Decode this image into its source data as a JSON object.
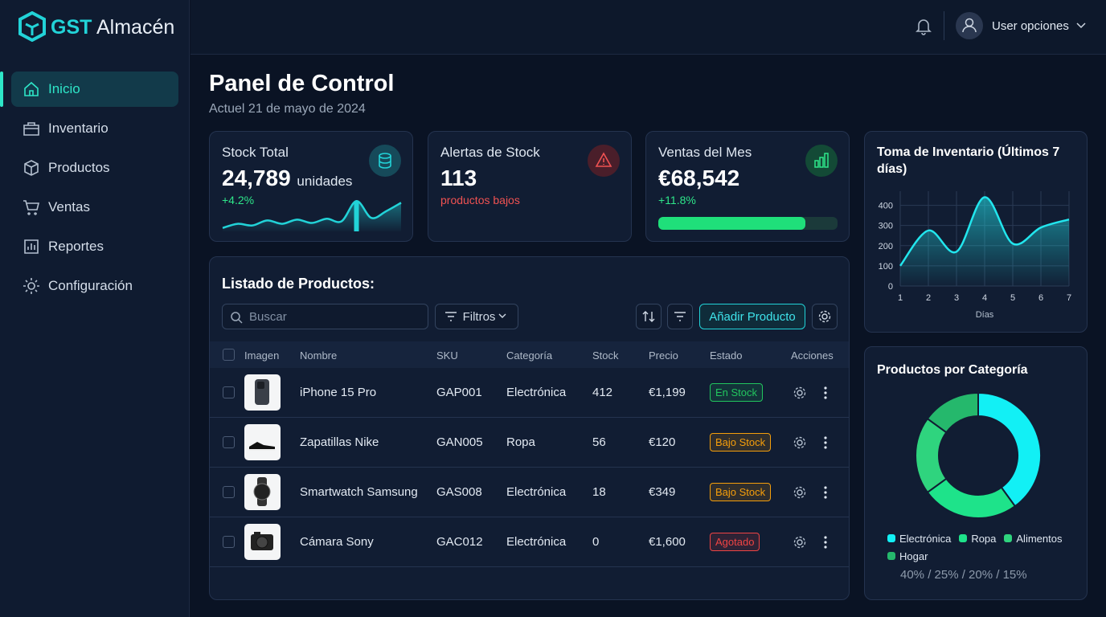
{
  "app": {
    "brand": "GST",
    "brand_suffix": "Almacén",
    "user": "User opciones"
  },
  "nav": {
    "active": 0,
    "items": [
      "Inicio",
      "Inventario",
      "Productos",
      "Ventas",
      "Reportes",
      "Configuración"
    ]
  },
  "page": {
    "title": "Panel de Control",
    "subtitle": "Actuel 21 de mayo de 2024"
  },
  "kpis": [
    {
      "label": "Stock Total",
      "value": "24,789",
      "unit": "unidades",
      "change": "+4.2%"
    },
    {
      "label": "Alertas de Stock",
      "value": "113",
      "note": "productos bajos"
    },
    {
      "label": "Ventas del Mes",
      "value": "€68,542",
      "change": "+11.8%",
      "progress": 82
    }
  ],
  "table": {
    "title": "Listado de Productos:",
    "search_placeholder": "Buscar",
    "filter": "Filtros",
    "add_button": "Añadir Producto",
    "columns": [
      "Imagen",
      "Nombre",
      "SKU",
      "Categoría",
      "Stock",
      "Precio",
      "Estado",
      "Acciones"
    ],
    "rows": [
      {
        "name": "iPhone 15 Pro",
        "sku": "GAP001",
        "category": "Electrónica",
        "stock": "412",
        "price": "€1,199",
        "status": "En Stock",
        "tone": "#22c55e"
      },
      {
        "name": "Zapatillas Nike",
        "sku": "GAN005",
        "category": "Ropa",
        "stock": "56",
        "price": "€120",
        "status": "Bajo Stock",
        "tone": "#f59e0b"
      },
      {
        "name": "Smartwatch Samsung",
        "sku": "GAS008",
        "category": "Electrónica",
        "stock": "18",
        "price": "€349",
        "status": "Bajo Stock",
        "tone": "#f59e0b"
      },
      {
        "name": "Cámara Sony",
        "sku": "GAC012",
        "category": "Electrónica",
        "stock": "0",
        "price": "€1,600",
        "status": "Agotado",
        "tone": "#ef4444"
      }
    ]
  },
  "chart_data": [
    {
      "type": "area",
      "values": [
        4,
        9,
        7,
        13,
        9,
        14,
        10,
        15,
        12,
        36,
        16,
        24,
        34
      ],
      "ylim": [
        0,
        42
      ],
      "color": "#22d3d8"
    },
    {
      "type": "line",
      "title": "Toma de Inventario (Últimos 7 días)",
      "x": [
        1,
        2,
        3,
        4,
        5,
        6,
        7
      ],
      "values": [
        100,
        275,
        170,
        440,
        210,
        290,
        330
      ],
      "xlim": [
        1,
        7
      ],
      "ylim": [
        0,
        470
      ],
      "xticks": [
        1,
        2,
        3,
        4,
        5,
        6,
        7
      ],
      "yticks": [
        0,
        100,
        200,
        300,
        400
      ],
      "xlabel": "Días",
      "color": "#22e6ee",
      "grid": true
    },
    {
      "type": "pie",
      "title": "Productos por Categoría",
      "categories": [
        "Electrónica",
        "Ropa",
        "Alimentos",
        "Hogar"
      ],
      "values": [
        40,
        25,
        20,
        15
      ],
      "colors": [
        "#12f0f5",
        "#1ee38a",
        "#2fd47e",
        "#25b86c"
      ],
      "summary": "40% / 25% / 20% / 15%",
      "donut": true
    }
  ]
}
